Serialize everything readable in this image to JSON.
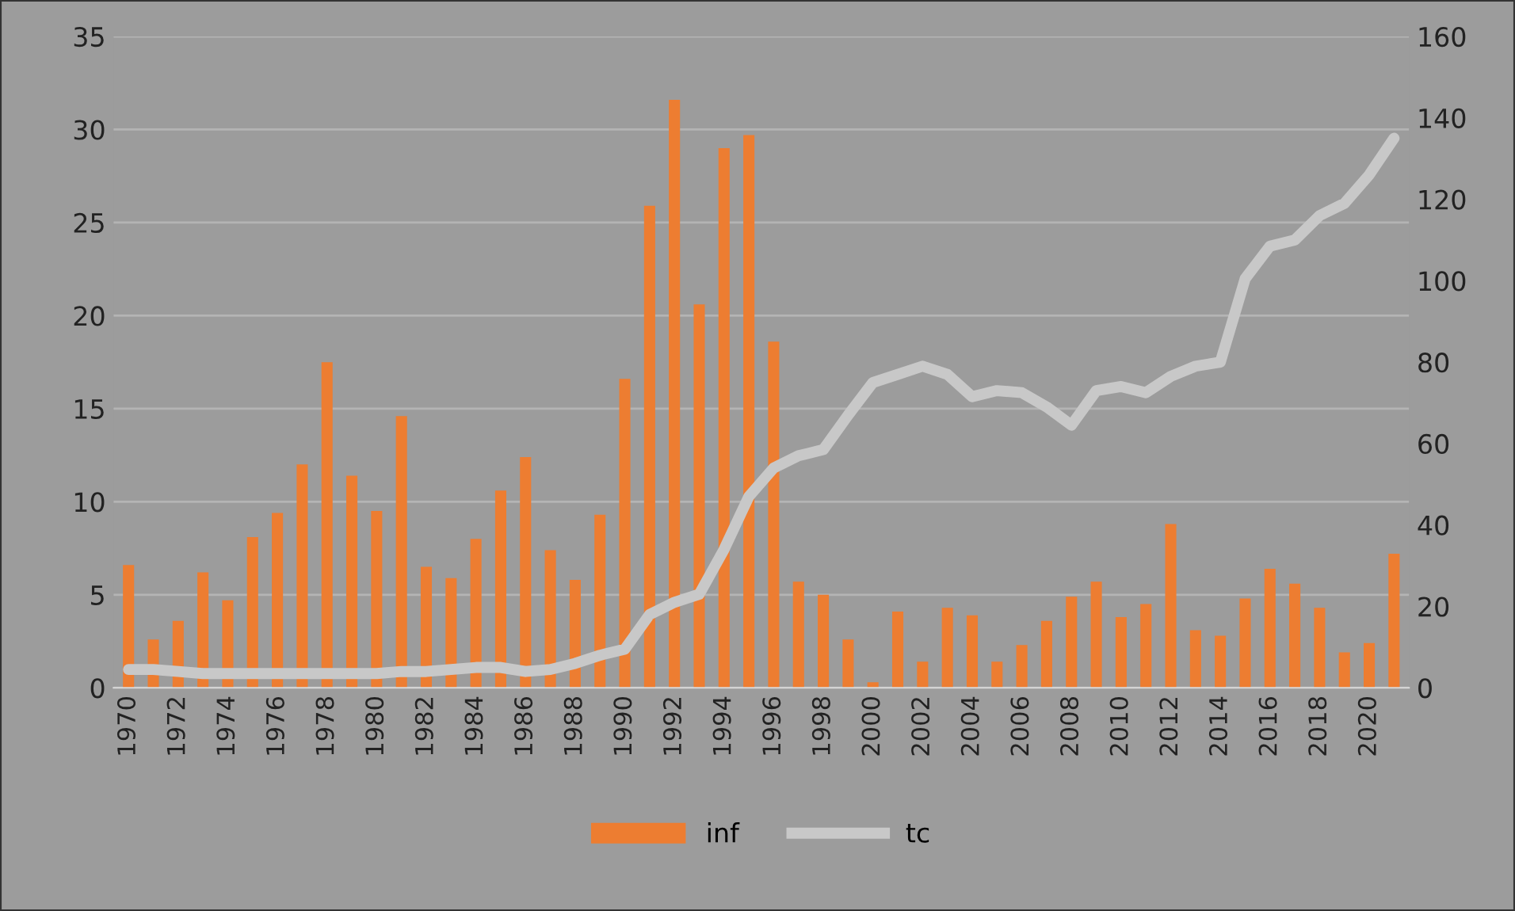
{
  "chart_data": {
    "type": "bar",
    "categories": [
      "1970",
      null,
      "1972",
      null,
      "1974",
      null,
      "1976",
      null,
      "1978",
      null,
      "1980",
      null,
      "1982",
      null,
      "1984",
      null,
      "1986",
      null,
      "1988",
      null,
      "1990",
      null,
      "1992",
      null,
      "1994",
      null,
      "1996",
      null,
      "1998",
      null,
      "2000",
      null,
      "2002",
      null,
      "2004",
      null,
      "2006",
      null,
      "2008",
      null,
      "2010",
      null,
      "2012",
      null,
      "2014",
      null,
      "2016",
      null,
      "2018",
      null,
      "2020",
      null
    ],
    "series": [
      {
        "name": "inf",
        "color": "#ed7d31",
        "values": [
          6.6,
          2.6,
          3.6,
          6.2,
          4.7,
          8.1,
          9.4,
          12.0,
          17.5,
          11.4,
          9.5,
          14.6,
          6.5,
          5.9,
          8.0,
          10.6,
          12.4,
          7.4,
          5.8,
          9.3,
          16.6,
          25.9,
          31.6,
          20.6,
          29.0,
          29.7,
          18.6,
          5.7,
          5.0,
          2.6,
          0.3,
          4.1,
          1.4,
          4.3,
          3.9,
          1.4,
          2.3,
          3.6,
          4.9,
          5.7,
          3.8,
          4.5,
          8.8,
          3.1,
          2.8,
          4.8,
          6.4,
          5.6,
          4.3,
          1.9,
          2.4,
          7.2
        ]
      },
      {
        "name": "tc",
        "type": "line",
        "axis": "y2",
        "color": "#c8c8c8",
        "values": [
          4.5,
          4.5,
          4,
          3.5,
          3.5,
          3.5,
          3.5,
          3.5,
          3.5,
          3.5,
          3.5,
          4,
          4,
          4.5,
          5,
          5,
          4,
          4.5,
          6,
          8,
          9.5,
          18,
          21,
          23,
          34,
          47,
          54,
          57,
          58.5,
          67,
          75,
          77,
          79,
          77,
          71.5,
          73,
          72.5,
          69,
          64.5,
          73,
          74,
          72.5,
          76.5,
          79,
          80,
          100.5,
          108.5,
          110,
          116,
          119,
          126,
          135
        ]
      }
    ],
    "ylim": [
      0,
      35
    ],
    "yticks": [
      0,
      5,
      10,
      15,
      20,
      25,
      30,
      35
    ],
    "y2lim": [
      0,
      160
    ],
    "y2ticks": [
      0,
      20,
      40,
      60,
      80,
      100,
      120,
      140,
      160
    ],
    "grid": "y",
    "legend": "bottom",
    "marker": "none",
    "line_style": "solid"
  }
}
